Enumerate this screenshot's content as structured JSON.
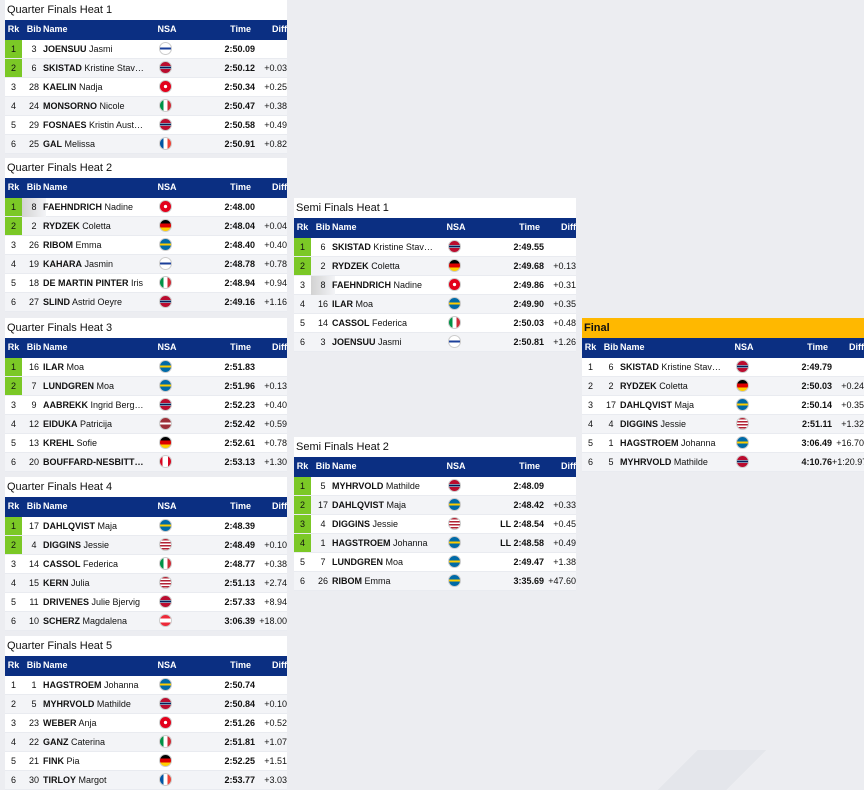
{
  "columns": {
    "rk": "Rk",
    "bib": "Bib",
    "name": "Name",
    "nsa": "NSA",
    "time": "Time",
    "diff": "Diff"
  },
  "heats": [
    {
      "title": "Quarter Finals Heat 1",
      "rows": [
        {
          "rk": "1",
          "bib": "3",
          "last": "JOENSUU",
          "first": "Jasmi",
          "nsa": "FIN",
          "time": "2:50.09",
          "diff": "",
          "q": true
        },
        {
          "rk": "2",
          "bib": "6",
          "last": "SKISTAD",
          "first": "Kristine Stav…",
          "nsa": "NOR",
          "time": "2:50.12",
          "diff": "+0.03",
          "q": true
        },
        {
          "rk": "3",
          "bib": "28",
          "last": "KAELIN",
          "first": "Nadja",
          "nsa": "SUI",
          "time": "2:50.34",
          "diff": "+0.25"
        },
        {
          "rk": "4",
          "bib": "24",
          "last": "MONSORNO",
          "first": "Nicole",
          "nsa": "ITA",
          "time": "2:50.47",
          "diff": "+0.38"
        },
        {
          "rk": "5",
          "bib": "29",
          "last": "FOSNAES",
          "first": "Kristin Aust…",
          "nsa": "NOR",
          "time": "2:50.58",
          "diff": "+0.49"
        },
        {
          "rk": "6",
          "bib": "25",
          "last": "GAL",
          "first": "Melissa",
          "nsa": "FRA",
          "time": "2:50.91",
          "diff": "+0.82"
        }
      ]
    },
    {
      "title": "Quarter Finals Heat 2",
      "rows": [
        {
          "rk": "1",
          "bib": "8",
          "last": "FAEHNDRICH",
          "first": "Nadine",
          "nsa": "SUI",
          "time": "2:48.00",
          "diff": "",
          "q": true,
          "luck": true
        },
        {
          "rk": "2",
          "bib": "2",
          "last": "RYDZEK",
          "first": "Coletta",
          "nsa": "GER",
          "time": "2:48.04",
          "diff": "+0.04",
          "q": true
        },
        {
          "rk": "3",
          "bib": "26",
          "last": "RIBOM",
          "first": "Emma",
          "nsa": "SWE",
          "time": "2:48.40",
          "diff": "+0.40"
        },
        {
          "rk": "4",
          "bib": "19",
          "last": "KAHARA",
          "first": "Jasmin",
          "nsa": "FIN",
          "time": "2:48.78",
          "diff": "+0.78"
        },
        {
          "rk": "5",
          "bib": "18",
          "last": "DE MARTIN PINTER",
          "first": "Iris",
          "nsa": "ITA",
          "time": "2:48.94",
          "diff": "+0.94"
        },
        {
          "rk": "6",
          "bib": "27",
          "last": "SLIND",
          "first": "Astrid Oeyre",
          "nsa": "NOR",
          "time": "2:49.16",
          "diff": "+1.16"
        }
      ]
    },
    {
      "title": "Quarter Finals Heat 3",
      "rows": [
        {
          "rk": "1",
          "bib": "16",
          "last": "ILAR",
          "first": "Moa",
          "nsa": "SWE",
          "time": "2:51.83",
          "diff": "",
          "q": true
        },
        {
          "rk": "2",
          "bib": "7",
          "last": "LUNDGREN",
          "first": "Moa",
          "nsa": "SWE",
          "time": "2:51.96",
          "diff": "+0.13",
          "q": true
        },
        {
          "rk": "3",
          "bib": "9",
          "last": "AABREKK",
          "first": "Ingrid Berg…",
          "nsa": "NOR",
          "time": "2:52.23",
          "diff": "+0.40"
        },
        {
          "rk": "4",
          "bib": "12",
          "last": "EIDUKA",
          "first": "Patricija",
          "nsa": "LAT",
          "time": "2:52.42",
          "diff": "+0.59"
        },
        {
          "rk": "5",
          "bib": "13",
          "last": "KREHL",
          "first": "Sofie",
          "nsa": "GER",
          "time": "2:52.61",
          "diff": "+0.78"
        },
        {
          "rk": "6",
          "bib": "20",
          "last": "BOUFFARD-NESBITT…",
          "first": "",
          "nsa": "CAN",
          "time": "2:53.13",
          "diff": "+1.30"
        }
      ]
    },
    {
      "title": "Quarter Finals Heat 4",
      "rows": [
        {
          "rk": "1",
          "bib": "17",
          "last": "DAHLQVIST",
          "first": "Maja",
          "nsa": "SWE",
          "time": "2:48.39",
          "diff": "",
          "q": true
        },
        {
          "rk": "2",
          "bib": "4",
          "last": "DIGGINS",
          "first": "Jessie",
          "nsa": "USA",
          "time": "2:48.49",
          "diff": "+0.10",
          "q": true
        },
        {
          "rk": "3",
          "bib": "14",
          "last": "CASSOL",
          "first": "Federica",
          "nsa": "ITA",
          "time": "2:48.77",
          "diff": "+0.38"
        },
        {
          "rk": "4",
          "bib": "15",
          "last": "KERN",
          "first": "Julia",
          "nsa": "USA",
          "time": "2:51.13",
          "diff": "+2.74"
        },
        {
          "rk": "5",
          "bib": "11",
          "last": "DRIVENES",
          "first": "Julie Bjervig",
          "nsa": "NOR",
          "time": "2:57.33",
          "diff": "+8.94"
        },
        {
          "rk": "6",
          "bib": "10",
          "last": "SCHERZ",
          "first": "Magdalena",
          "nsa": "AUT",
          "time": "3:06.39",
          "diff": "+18.00"
        }
      ]
    },
    {
      "title": "Quarter Finals Heat 5",
      "rows": [
        {
          "rk": "1",
          "bib": "1",
          "last": "HAGSTROEM",
          "first": "Johanna",
          "nsa": "SWE",
          "time": "2:50.74",
          "diff": ""
        },
        {
          "rk": "2",
          "bib": "5",
          "last": "MYHRVOLD",
          "first": "Mathilde",
          "nsa": "NOR",
          "time": "2:50.84",
          "diff": "+0.10"
        },
        {
          "rk": "3",
          "bib": "23",
          "last": "WEBER",
          "first": "Anja",
          "nsa": "SUI",
          "time": "2:51.26",
          "diff": "+0.52"
        },
        {
          "rk": "4",
          "bib": "22",
          "last": "GANZ",
          "first": "Caterina",
          "nsa": "ITA",
          "time": "2:51.81",
          "diff": "+1.07"
        },
        {
          "rk": "5",
          "bib": "21",
          "last": "FINK",
          "first": "Pia",
          "nsa": "GER",
          "time": "2:52.25",
          "diff": "+1.51"
        },
        {
          "rk": "6",
          "bib": "30",
          "last": "TIRLOY",
          "first": "Margot",
          "nsa": "FRA",
          "time": "2:53.77",
          "diff": "+3.03"
        }
      ]
    },
    {
      "title": "Semi Finals Heat 1",
      "rows": [
        {
          "rk": "1",
          "bib": "6",
          "last": "SKISTAD",
          "first": "Kristine Stav…",
          "nsa": "NOR",
          "time": "2:49.55",
          "diff": "",
          "q": true
        },
        {
          "rk": "2",
          "bib": "2",
          "last": "RYDZEK",
          "first": "Coletta",
          "nsa": "GER",
          "time": "2:49.68",
          "diff": "+0.13",
          "q": true
        },
        {
          "rk": "3",
          "bib": "8",
          "last": "FAEHNDRICH",
          "first": "Nadine",
          "nsa": "SUI",
          "time": "2:49.86",
          "diff": "+0.31",
          "luck": true
        },
        {
          "rk": "4",
          "bib": "16",
          "last": "ILAR",
          "first": "Moa",
          "nsa": "SWE",
          "time": "2:49.90",
          "diff": "+0.35"
        },
        {
          "rk": "5",
          "bib": "14",
          "last": "CASSOL",
          "first": "Federica",
          "nsa": "ITA",
          "time": "2:50.03",
          "diff": "+0.48"
        },
        {
          "rk": "6",
          "bib": "3",
          "last": "JOENSUU",
          "first": "Jasmi",
          "nsa": "FIN",
          "time": "2:50.81",
          "diff": "+1.26"
        }
      ]
    },
    {
      "title": "Semi Finals Heat 2",
      "rows": [
        {
          "rk": "1",
          "bib": "5",
          "last": "MYHRVOLD",
          "first": "Mathilde",
          "nsa": "NOR",
          "time": "2:48.09",
          "diff": "",
          "q": true
        },
        {
          "rk": "2",
          "bib": "17",
          "last": "DAHLQVIST",
          "first": "Maja",
          "nsa": "SWE",
          "time": "2:48.42",
          "diff": "+0.33",
          "q": true
        },
        {
          "rk": "3",
          "bib": "4",
          "last": "DIGGINS",
          "first": "Jessie",
          "nsa": "USA",
          "time": "LL 2:48.54",
          "diff": "+0.45",
          "q": true
        },
        {
          "rk": "4",
          "bib": "1",
          "last": "HAGSTROEM",
          "first": "Johanna",
          "nsa": "SWE",
          "time": "LL 2:48.58",
          "diff": "+0.49",
          "q": true
        },
        {
          "rk": "5",
          "bib": "7",
          "last": "LUNDGREN",
          "first": "Moa",
          "nsa": "SWE",
          "time": "2:49.47",
          "diff": "+1.38"
        },
        {
          "rk": "6",
          "bib": "26",
          "last": "RIBOM",
          "first": "Emma",
          "nsa": "SWE",
          "time": "3:35.69",
          "diff": "+47.60"
        }
      ]
    },
    {
      "title": "Final",
      "rows": [
        {
          "rk": "1",
          "bib": "6",
          "last": "SKISTAD",
          "first": "Kristine Stav…",
          "nsa": "NOR",
          "time": "2:49.79",
          "diff": ""
        },
        {
          "rk": "2",
          "bib": "2",
          "last": "RYDZEK",
          "first": "Coletta",
          "nsa": "GER",
          "time": "2:50.03",
          "diff": "+0.24"
        },
        {
          "rk": "3",
          "bib": "17",
          "last": "DAHLQVIST",
          "first": "Maja",
          "nsa": "SWE",
          "time": "2:50.14",
          "diff": "+0.35"
        },
        {
          "rk": "4",
          "bib": "4",
          "last": "DIGGINS",
          "first": "Jessie",
          "nsa": "USA",
          "time": "2:51.11",
          "diff": "+1.32"
        },
        {
          "rk": "5",
          "bib": "1",
          "last": "HAGSTROEM",
          "first": "Johanna",
          "nsa": "SWE",
          "time": "3:06.49",
          "diff": "+16.70"
        },
        {
          "rk": "6",
          "bib": "5",
          "last": "MYHRVOLD",
          "first": "Mathilde",
          "nsa": "NOR",
          "time": "4:10.76",
          "diff": "+1:20.97"
        }
      ]
    }
  ]
}
